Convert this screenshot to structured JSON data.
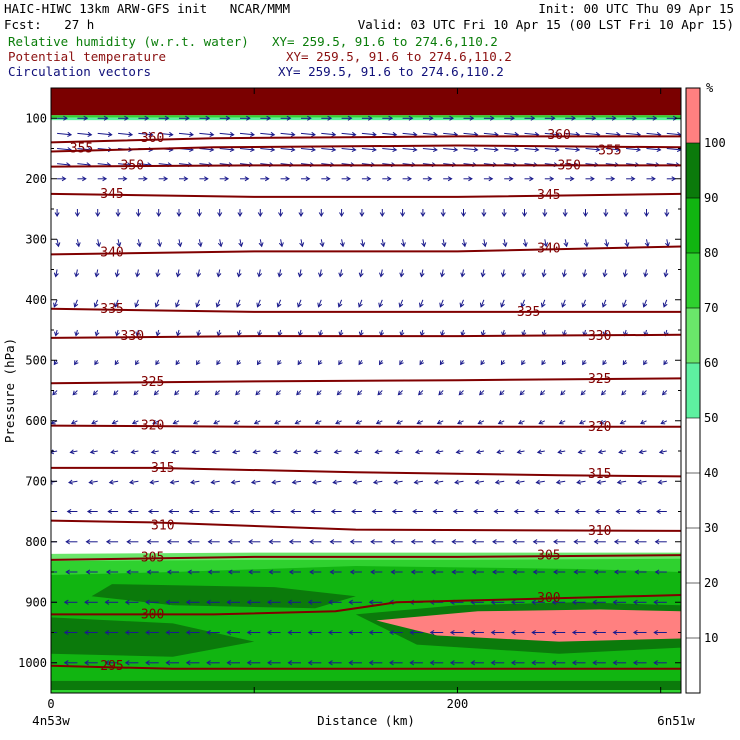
{
  "header": {
    "line1_left": "HAIC-HIWC 13km ARW-GFS init   NCAR/MMM",
    "line1_right": "Init: 00 UTC Thu 09 Apr 15",
    "line2_left": "Fcst:   27 h",
    "line2_right": "Valid: 03 UTC Fri 10 Apr 15 (00 LST Fri 10 Apr 15)",
    "rh_label": "Relative humidity (w.r.t. water)",
    "rh_xy": "XY= 259.5, 91.6 to 274.6,110.2",
    "theta_label": "Potential temperature",
    "theta_xy": "XY= 259.5, 91.6 to 274.6,110.2",
    "vec_label": "Circulation vectors",
    "vec_xy": "XY= 259.5, 91.6 to 274.6,110.2"
  },
  "colors": {
    "theta": "#800000",
    "vectors": "#1a1a8c",
    "rh_shades": [
      "#ffffff",
      "#5ef0a0",
      "#6ae66a",
      "#2fd12f",
      "#11b511",
      "#0b7a0b",
      "#ff8080"
    ]
  },
  "chart_data": {
    "type": "contour",
    "ylabel": "Pressure (hPa)",
    "xlabel": "Distance (km)",
    "x_start_label": "4n53w",
    "x_end_label": "6n51w",
    "xlim": [
      0,
      310
    ],
    "ylim": [
      1050,
      50
    ],
    "x_ticks": [
      0,
      100,
      200,
      300
    ],
    "x_tick_labels": [
      "0",
      "",
      "200",
      ""
    ],
    "y_ticks": [
      100,
      200,
      300,
      400,
      500,
      600,
      700,
      800,
      900,
      1000
    ],
    "y_tick_labels": [
      "100",
      "200",
      "300",
      "400",
      "500",
      "600",
      "700",
      "800",
      "900",
      "1000"
    ],
    "colorbar": {
      "unit": "%",
      "levels": [
        10,
        20,
        30,
        40,
        50,
        60,
        70,
        80,
        90,
        100
      ],
      "level_labels": [
        "10",
        "20",
        "30",
        "40",
        "50",
        "60",
        "70",
        "80",
        "90",
        "100"
      ],
      "shaded_bands": [
        [
          50,
          60
        ],
        [
          60,
          70
        ],
        [
          70,
          80
        ],
        [
          80,
          90
        ],
        [
          90,
          100
        ],
        [
          100,
          110
        ]
      ]
    },
    "theta_contours": [
      {
        "value": 295,
        "points": [
          [
            0,
            1005
          ],
          [
            60,
            1010
          ],
          [
            150,
            1010
          ],
          [
            310,
            1010
          ]
        ],
        "labels": [
          [
            30,
            1005,
            "295"
          ]
        ]
      },
      {
        "value": 300,
        "points": [
          [
            0,
            920
          ],
          [
            80,
            920
          ],
          [
            140,
            915
          ],
          [
            170,
            900
          ],
          [
            230,
            895
          ],
          [
            310,
            888
          ]
        ],
        "labels": [
          [
            50,
            920,
            "300"
          ],
          [
            245,
            893,
            "300"
          ]
        ]
      },
      {
        "value": 305,
        "points": [
          [
            0,
            830
          ],
          [
            100,
            825
          ],
          [
            200,
            825
          ],
          [
            310,
            822
          ]
        ],
        "labels": [
          [
            50,
            826,
            "305"
          ],
          [
            245,
            823,
            "305"
          ]
        ]
      },
      {
        "value": 310,
        "points": [
          [
            0,
            765
          ],
          [
            50,
            768
          ],
          [
            150,
            780
          ],
          [
            310,
            782
          ]
        ],
        "labels": [
          [
            55,
            773,
            "310"
          ],
          [
            270,
            782,
            "310"
          ]
        ]
      },
      {
        "value": 315,
        "points": [
          [
            0,
            678
          ],
          [
            50,
            678
          ],
          [
            150,
            685
          ],
          [
            250,
            690
          ],
          [
            310,
            692
          ]
        ],
        "labels": [
          [
            55,
            678,
            "315"
          ],
          [
            270,
            688,
            "315"
          ]
        ]
      },
      {
        "value": 320,
        "points": [
          [
            0,
            608
          ],
          [
            100,
            610
          ],
          [
            200,
            610
          ],
          [
            310,
            610
          ]
        ],
        "labels": [
          [
            50,
            608,
            "320"
          ],
          [
            270,
            610,
            "320"
          ]
        ]
      },
      {
        "value": 325,
        "points": [
          [
            0,
            538
          ],
          [
            100,
            535
          ],
          [
            200,
            533
          ],
          [
            310,
            530
          ]
        ],
        "labels": [
          [
            50,
            536,
            "325"
          ],
          [
            270,
            531,
            "325"
          ]
        ]
      },
      {
        "value": 330,
        "points": [
          [
            0,
            463
          ],
          [
            100,
            460
          ],
          [
            200,
            460
          ],
          [
            310,
            458
          ]
        ],
        "labels": [
          [
            40,
            460,
            "330"
          ],
          [
            270,
            460,
            "330"
          ]
        ]
      },
      {
        "value": 335,
        "points": [
          [
            0,
            415
          ],
          [
            100,
            420
          ],
          [
            200,
            420
          ],
          [
            310,
            420
          ]
        ],
        "labels": [
          [
            30,
            415,
            "335"
          ],
          [
            235,
            420,
            "335"
          ]
        ]
      },
      {
        "value": 340,
        "points": [
          [
            0,
            325
          ],
          [
            100,
            320
          ],
          [
            200,
            320
          ],
          [
            310,
            312
          ]
        ],
        "labels": [
          [
            30,
            322,
            "340"
          ],
          [
            245,
            315,
            "340"
          ]
        ]
      },
      {
        "value": 345,
        "points": [
          [
            0,
            225
          ],
          [
            100,
            230
          ],
          [
            200,
            230
          ],
          [
            310,
            225
          ]
        ],
        "labels": [
          [
            30,
            225,
            "345"
          ],
          [
            245,
            227,
            "345"
          ]
        ]
      },
      {
        "value": 350,
        "points": [
          [
            0,
            180
          ],
          [
            100,
            178
          ],
          [
            200,
            178
          ],
          [
            310,
            178
          ]
        ],
        "labels": [
          [
            40,
            178,
            "350"
          ],
          [
            255,
            178,
            "350"
          ]
        ]
      },
      {
        "value": 355,
        "points": [
          [
            0,
            155
          ],
          [
            80,
            148
          ],
          [
            200,
            145
          ],
          [
            310,
            148
          ]
        ],
        "labels": [
          [
            15,
            150,
            "355"
          ],
          [
            275,
            153,
            "355"
          ]
        ]
      },
      {
        "value": 360,
        "points": [
          [
            0,
            140
          ],
          [
            80,
            133
          ],
          [
            200,
            130
          ],
          [
            310,
            130
          ]
        ],
        "labels": [
          [
            50,
            133,
            "360"
          ],
          [
            250,
            128,
            "360"
          ]
        ]
      }
    ],
    "rh_regions": [
      {
        "level": 100,
        "points": [
          [
            0,
            50
          ],
          [
            310,
            50
          ],
          [
            310,
            95
          ],
          [
            0,
            95
          ]
        ]
      },
      {
        "level": 70,
        "points": [
          [
            0,
            95
          ],
          [
            310,
            95
          ],
          [
            310,
            99
          ],
          [
            0,
            99
          ]
        ]
      },
      {
        "level": 50,
        "points": [
          [
            0,
            99
          ],
          [
            310,
            99
          ],
          [
            310,
            103
          ],
          [
            0,
            103
          ]
        ]
      },
      {
        "level": 60,
        "points": [
          [
            0,
            820
          ],
          [
            100,
            818
          ],
          [
            200,
            818
          ],
          [
            310,
            818
          ],
          [
            310,
            1050
          ],
          [
            0,
            1050
          ]
        ]
      },
      {
        "level": 70,
        "points": [
          [
            0,
            832
          ],
          [
            100,
            830
          ],
          [
            200,
            830
          ],
          [
            310,
            828
          ],
          [
            310,
            1050
          ],
          [
            0,
            1050
          ]
        ]
      },
      {
        "level": 80,
        "points": [
          [
            0,
            855
          ],
          [
            60,
            850
          ],
          [
            150,
            840
          ],
          [
            260,
            845
          ],
          [
            310,
            850
          ],
          [
            310,
            1030
          ],
          [
            0,
            1030
          ]
        ]
      },
      {
        "level": 90,
        "points": [
          [
            30,
            870
          ],
          [
            110,
            875
          ],
          [
            150,
            890
          ],
          [
            130,
            910
          ],
          [
            60,
            905
          ],
          [
            20,
            890
          ]
        ]
      },
      {
        "level": 90,
        "points": [
          [
            0,
            925
          ],
          [
            60,
            935
          ],
          [
            100,
            965
          ],
          [
            60,
            990
          ],
          [
            0,
            985
          ]
        ]
      },
      {
        "level": 90,
        "points": [
          [
            150,
            920
          ],
          [
            200,
            905
          ],
          [
            260,
            900
          ],
          [
            310,
            905
          ],
          [
            310,
            975
          ],
          [
            250,
            985
          ],
          [
            180,
            970
          ]
        ]
      },
      {
        "level": 100,
        "points": [
          [
            160,
            930
          ],
          [
            210,
            915
          ],
          [
            270,
            912
          ],
          [
            310,
            915
          ],
          [
            310,
            960
          ],
          [
            250,
            965
          ],
          [
            190,
            955
          ]
        ]
      },
      {
        "level": 90,
        "points": [
          [
            0,
            1030
          ],
          [
            310,
            1030
          ],
          [
            310,
            1045
          ],
          [
            0,
            1045
          ]
        ]
      }
    ],
    "wind_vectors": {
      "x_spacing_km": 10,
      "levels": [
        {
          "p": 100,
          "u": 0.7,
          "v": 0.0
        },
        {
          "p": 125,
          "u": 1.0,
          "v": -0.1
        },
        {
          "p": 150,
          "u": 1.0,
          "v": -0.1
        },
        {
          "p": 175,
          "u": 0.9,
          "v": -0.1
        },
        {
          "p": 200,
          "u": 0.6,
          "v": 0.0
        },
        {
          "p": 250,
          "u": 0.0,
          "v": -0.5
        },
        {
          "p": 300,
          "u": 0.1,
          "v": -0.5
        },
        {
          "p": 350,
          "u": -0.1,
          "v": -0.5
        },
        {
          "p": 400,
          "u": -0.2,
          "v": -0.5
        },
        {
          "p": 450,
          "u": -0.1,
          "v": -0.4
        },
        {
          "p": 500,
          "u": -0.2,
          "v": -0.3
        },
        {
          "p": 550,
          "u": -0.3,
          "v": -0.3
        },
        {
          "p": 600,
          "u": -0.4,
          "v": -0.2
        },
        {
          "p": 650,
          "u": -0.5,
          "v": -0.1
        },
        {
          "p": 700,
          "u": -0.6,
          "v": -0.1
        },
        {
          "p": 750,
          "u": -0.7,
          "v": 0.0
        },
        {
          "p": 800,
          "u": -0.8,
          "v": 0.0
        },
        {
          "p": 850,
          "u": -0.8,
          "v": 0.0
        },
        {
          "p": 900,
          "u": -0.9,
          "v": 0.0
        },
        {
          "p": 950,
          "u": -0.9,
          "v": 0.0
        },
        {
          "p": 1000,
          "u": -0.9,
          "v": 0.0
        }
      ]
    }
  }
}
